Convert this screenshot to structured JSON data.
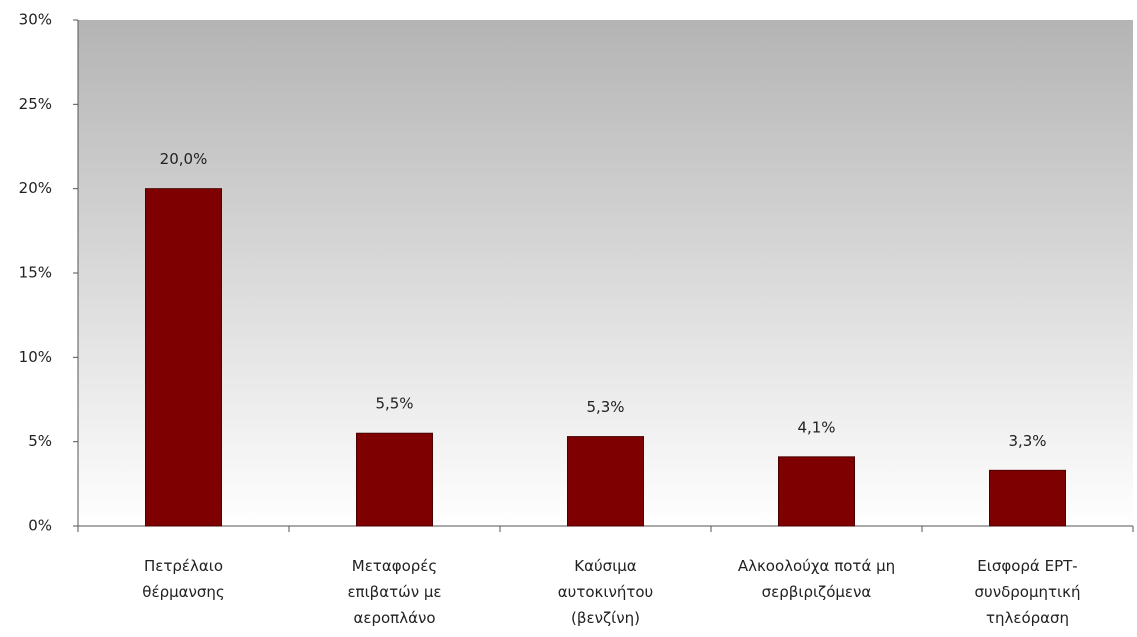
{
  "chart_data": {
    "type": "bar",
    "categories": [
      [
        "Πετρέλαιο",
        "θέρμανσης"
      ],
      [
        "Μεταφορές",
        "επιβατών με",
        "αεροπλάνο"
      ],
      [
        "Καύσιμα",
        "αυτοκινήτου",
        "(βενζίνη)"
      ],
      [
        "Αλκοολούχα ποτά μη",
        "σερβιριζόμενα"
      ],
      [
        "Εισφορά ΕΡΤ-",
        "συνδρομητική",
        "τηλεόραση"
      ]
    ],
    "values": [
      20.0,
      5.5,
      5.3,
      4.1,
      3.3
    ],
    "value_labels": [
      "20,0%",
      "5,5%",
      "5,3%",
      "4,1%",
      "3,3%"
    ],
    "color": "#7f0000",
    "ylim": [
      0,
      30
    ],
    "yticks": [
      {
        "value": 0,
        "label": "0%"
      },
      {
        "value": 5,
        "label": "5%"
      },
      {
        "value": 10,
        "label": "10%"
      },
      {
        "value": 15,
        "label": "15%"
      },
      {
        "value": 20,
        "label": "20%"
      },
      {
        "value": 25,
        "label": "25%"
      },
      {
        "value": 30,
        "label": "30%"
      }
    ],
    "grid": false
  }
}
